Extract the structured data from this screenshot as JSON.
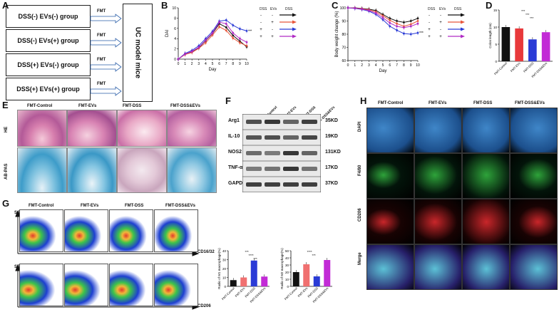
{
  "panels": {
    "A": "A",
    "B": "B",
    "C": "C",
    "D": "D",
    "E": "E",
    "F": "F",
    "G": "G",
    "H": "H"
  },
  "panelA": {
    "groups": [
      "DSS(-) EVs(-) group",
      "DSS(-) EVs(+) group",
      "DSS(+) EVs(-) group",
      "DSS(+) EVs(+) group"
    ],
    "arrow_label": "FMT",
    "target": "UC model mice"
  },
  "legend": {
    "dss": "DSS",
    "evs": "EVs",
    "dss2": "DSS",
    "rows": [
      [
        "-",
        "-"
      ],
      [
        "-",
        "+"
      ],
      [
        "+",
        "-"
      ],
      [
        "+",
        "+"
      ]
    ]
  },
  "chart_data": [
    {
      "id": "B",
      "type": "line",
      "xlabel": "Day",
      "ylabel": "DAI",
      "ylim": [
        0,
        10
      ],
      "x": [
        0,
        1,
        2,
        3,
        4,
        5,
        6,
        7,
        8,
        9,
        10
      ],
      "yticks": [
        0,
        2,
        4,
        6,
        8,
        10
      ],
      "series": [
        {
          "name": "DSS- EVs-",
          "color": "#111111",
          "values": [
            0,
            1,
            1.4,
            2.2,
            3.6,
            5,
            6.9,
            6.2,
            4.6,
            3.5,
            2.4
          ]
        },
        {
          "name": "DSS- EVs+",
          "color": "#e8563b",
          "values": [
            0,
            0.9,
            1.3,
            2.1,
            3.2,
            4.7,
            6.3,
            5.6,
            4.1,
            3.2,
            2.6
          ]
        },
        {
          "name": "DSS+ EVs-",
          "color": "#2a3bd6",
          "values": [
            0,
            1.1,
            1.7,
            2.6,
            4,
            5.4,
            7.4,
            7.6,
            6.6,
            5.9,
            5.5
          ]
        },
        {
          "name": "DSS+ EVs+",
          "color": "#b02bc4",
          "values": [
            0,
            1,
            1.5,
            2.3,
            3.7,
            5.1,
            7.2,
            6.9,
            5.1,
            4,
            3.3
          ]
        }
      ],
      "annotation": "***"
    },
    {
      "id": "C",
      "type": "line",
      "xlabel": "Day",
      "ylabel": "Body weight change (%)",
      "ylim": [
        60,
        100
      ],
      "x": [
        0,
        1,
        2,
        3,
        4,
        5,
        6,
        7,
        8,
        9,
        10
      ],
      "yticks": [
        60,
        70,
        80,
        90,
        100
      ],
      "series": [
        {
          "name": "DSS- EVs-",
          "color": "#111111",
          "values": [
            100,
            100,
            99.5,
            99,
            98,
            95,
            92,
            90,
            89,
            90,
            92
          ]
        },
        {
          "name": "DSS- EVs+",
          "color": "#e8563b",
          "values": [
            100,
            99.8,
            99.3,
            98.6,
            97,
            94,
            90.5,
            88,
            86,
            87.5,
            90
          ]
        },
        {
          "name": "DSS+ EVs-",
          "color": "#2a3bd6",
          "values": [
            100,
            99.5,
            98.8,
            97.5,
            95,
            91,
            86,
            83,
            80.5,
            80,
            81
          ]
        },
        {
          "name": "DSS+ EVs+",
          "color": "#b02bc4",
          "values": [
            100,
            99.7,
            99,
            98,
            96,
            92.5,
            88.5,
            86,
            85,
            86,
            88
          ]
        }
      ],
      "annotation": "***"
    },
    {
      "id": "D",
      "type": "bar",
      "ylabel": "Colon length (cm)",
      "ylim": [
        0,
        15
      ],
      "yticks": [
        0,
        5,
        10,
        15
      ],
      "categories": [
        "FMT-Control",
        "FMT-EVs",
        "FMT-DSS",
        "FMT-DSS&EVs"
      ],
      "values": [
        10,
        9.6,
        6.4,
        8.5
      ],
      "colors": [
        "#111111",
        "#e8393b",
        "#2a3bd6",
        "#c22bd6"
      ],
      "annotations": [
        "***",
        "***",
        "***"
      ]
    },
    {
      "id": "G1",
      "type": "bar",
      "ylabel": "Radio of M1 macrophage(%)",
      "ylim": [
        0,
        40
      ],
      "yticks": [
        0,
        10,
        20,
        30,
        40
      ],
      "categories": [
        "FMT-Control",
        "FMT-EVs",
        "FMT-DSS",
        "FMT-DSS&EVs"
      ],
      "values": [
        7,
        10,
        29,
        11
      ],
      "colors": [
        "#111111",
        "#f07070",
        "#2a3bd6",
        "#c22bd6"
      ],
      "annotations": [
        "***",
        "****",
        "***"
      ]
    },
    {
      "id": "G2",
      "type": "bar",
      "ylabel": "Radio of M2 macrophage(%)",
      "ylim": [
        0,
        50
      ],
      "yticks": [
        0,
        10,
        20,
        30,
        40,
        50
      ],
      "categories": [
        "FMT-Control",
        "FMT-EVs",
        "FMT-DSS",
        "FMT-DSS&EVs"
      ],
      "values": [
        20,
        31,
        14,
        37
      ],
      "colors": [
        "#111111",
        "#f07070",
        "#2a3bd6",
        "#c22bd6"
      ],
      "annotations": [
        "****",
        "***"
      ]
    }
  ],
  "panelE": {
    "columns": [
      "FMT-Control",
      "FMT-EVs",
      "FMT-DSS",
      "FMT-DSS&EVs"
    ],
    "rows": [
      "HE",
      "AB-PAS"
    ]
  },
  "panelF": {
    "columns": [
      "FMT-Control",
      "FMT-EVs",
      "FMT-DSS",
      "FMT-DSS&EVs"
    ],
    "proteins": [
      "Arg1",
      "IL-10",
      "NOS2",
      "TNF-α",
      "GAPDH"
    ],
    "sizes": [
      "35KD",
      "19KD",
      "131KD",
      "17KD",
      "37KD"
    ]
  },
  "panelG": {
    "columns": [
      "FMT-Control",
      "FMT-EVs",
      "FMT-DSS",
      "FMT-DSS&EVs"
    ],
    "ssc": "SSC",
    "markers": [
      "CD16/32",
      "CD206"
    ]
  },
  "panelH": {
    "columns": [
      "FMT-Control",
      "FMT-EVs",
      "FMT-DSS",
      "FMT-DSS&EVs"
    ],
    "rows": [
      "DAPI",
      "F4/80",
      "CD206",
      "Merge"
    ]
  }
}
